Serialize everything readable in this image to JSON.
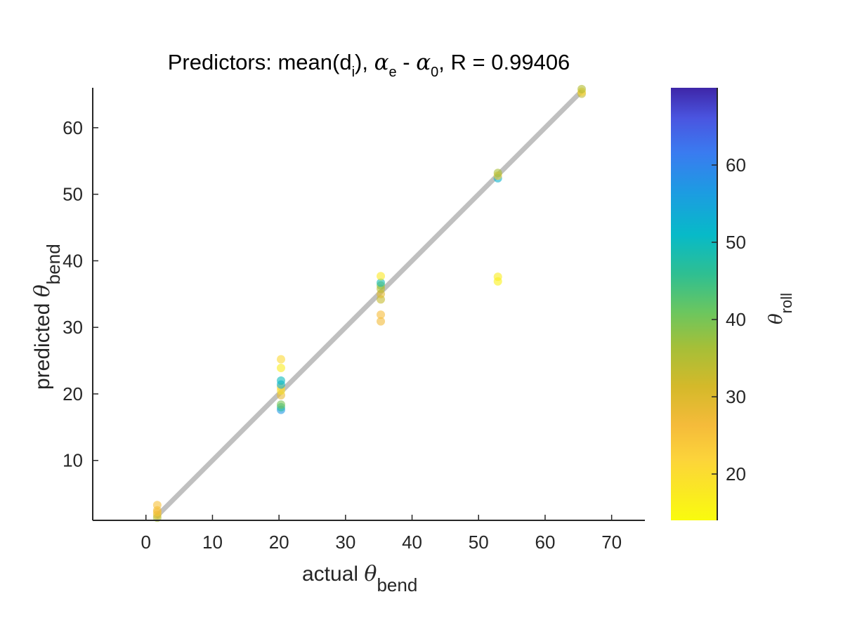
{
  "chart_data": {
    "type": "scatter",
    "title": {
      "prefix": "Predictors: mean(d",
      "sub_i": "i",
      "mid1": "), ",
      "alpha1": "α",
      "sub_e": "e",
      "mid2": " - ",
      "alpha2": "α",
      "sub_0": "0",
      "suffix": ", R = 0.99406"
    },
    "xlabel": {
      "text": "actual ",
      "symbol": "θ",
      "sub": "bend"
    },
    "ylabel": {
      "text": "predicted ",
      "symbol": "θ",
      "sub": "bend"
    },
    "colorbar_label": {
      "symbol": "θ",
      "sub": "roll"
    },
    "xlim": [
      -8,
      75
    ],
    "ylim": [
      1,
      66
    ],
    "xticks": [
      0,
      10,
      20,
      30,
      40,
      50,
      60,
      70
    ],
    "yticks": [
      10,
      20,
      30,
      40,
      50,
      60
    ],
    "grid": false,
    "colorbar": {
      "location": "right",
      "clim": [
        14,
        70
      ],
      "ticks": [
        20,
        30,
        40,
        50,
        60
      ],
      "colormap": "parula-reversed"
    },
    "reference_line": {
      "from": [
        1.5,
        1.5
      ],
      "to": [
        65.5,
        65.5
      ],
      "color": "#c0c0c0"
    },
    "colors": {
      "axis": "#262626",
      "reference": "#c0c0c0",
      "background": "#ffffff"
    },
    "series": [
      {
        "x": 1.7,
        "y": 1.4,
        "c": 36
      },
      {
        "x": 1.7,
        "y": 1.8,
        "c": 30
      },
      {
        "x": 1.7,
        "y": 2.2,
        "c": 24
      },
      {
        "x": 1.7,
        "y": 2.5,
        "c": 27
      },
      {
        "x": 1.7,
        "y": 3.3,
        "c": 25
      },
      {
        "x": 20.3,
        "y": 17.6,
        "c": 57
      },
      {
        "x": 20.3,
        "y": 18.0,
        "c": 47
      },
      {
        "x": 20.3,
        "y": 18.4,
        "c": 40
      },
      {
        "x": 20.3,
        "y": 19.8,
        "c": 28
      },
      {
        "x": 20.3,
        "y": 20.5,
        "c": 19
      },
      {
        "x": 20.3,
        "y": 21.0,
        "c": 22
      },
      {
        "x": 20.3,
        "y": 21.4,
        "c": 53
      },
      {
        "x": 20.3,
        "y": 22.0,
        "c": 50
      },
      {
        "x": 20.3,
        "y": 23.9,
        "c": 17
      },
      {
        "x": 20.3,
        "y": 25.2,
        "c": 21
      },
      {
        "x": 35.3,
        "y": 30.9,
        "c": 27
      },
      {
        "x": 35.3,
        "y": 31.9,
        "c": 26
      },
      {
        "x": 35.3,
        "y": 34.2,
        "c": 33
      },
      {
        "x": 35.3,
        "y": 35.0,
        "c": 29
      },
      {
        "x": 35.3,
        "y": 35.8,
        "c": 34
      },
      {
        "x": 35.3,
        "y": 36.3,
        "c": 38
      },
      {
        "x": 35.3,
        "y": 36.7,
        "c": 49
      },
      {
        "x": 35.3,
        "y": 37.7,
        "c": 18
      },
      {
        "x": 52.9,
        "y": 36.9,
        "c": 16
      },
      {
        "x": 52.9,
        "y": 37.6,
        "c": 17
      },
      {
        "x": 52.9,
        "y": 52.4,
        "c": 52
      },
      {
        "x": 52.9,
        "y": 52.8,
        "c": 24
      },
      {
        "x": 52.9,
        "y": 53.2,
        "c": 36
      },
      {
        "x": 65.5,
        "y": 65.1,
        "c": 33
      },
      {
        "x": 65.5,
        "y": 65.4,
        "c": 22
      },
      {
        "x": 65.5,
        "y": 65.8,
        "c": 35
      }
    ]
  }
}
